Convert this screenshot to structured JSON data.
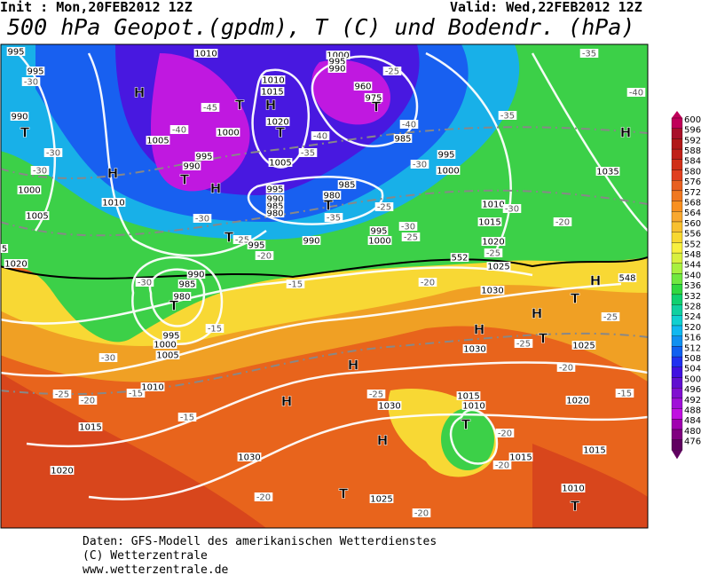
{
  "header": {
    "init": "Init : Mon,20FEB2012 12Z",
    "valid": "Valid: Wed,22FEB2012 12Z",
    "title": "500 hPa Geopot.(gpdm), T (C) und Bodendr. (hPa)"
  },
  "footer": [
    "Daten: GFS-Modell des amerikanischen Wetterdienstes",
    "(C) Wetterzentrale",
    "www.wetterzentrale.de"
  ],
  "legend": {
    "levels": [
      600,
      596,
      592,
      588,
      584,
      580,
      576,
      572,
      568,
      564,
      560,
      556,
      552,
      548,
      544,
      540,
      536,
      532,
      528,
      524,
      520,
      516,
      512,
      508,
      504,
      500,
      496,
      492,
      488,
      484,
      480,
      476
    ],
    "colors": [
      "#c0005a",
      "#a8102a",
      "#b01818",
      "#c02018",
      "#d03018",
      "#e04020",
      "#e86020",
      "#f07820",
      "#f89020",
      "#f8a830",
      "#f8c030",
      "#f8d830",
      "#f8f040",
      "#d8f040",
      "#a8f040",
      "#70e840",
      "#30d840",
      "#10d070",
      "#10d0a0",
      "#10d0d0",
      "#10b8f0",
      "#1090f0",
      "#1060f0",
      "#2030f0",
      "#4010e0",
      "#6010d0",
      "#8010d0",
      "#a010d8",
      "#c010e0",
      "#a000b0",
      "#800080",
      "#600060"
    ]
  },
  "map": {
    "labels": [
      "995",
      "1010",
      "995",
      "-30",
      "H",
      "990",
      "T",
      "-30",
      "-30",
      "H",
      "1000",
      "1010",
      "1005",
      "1005",
      "-40",
      "-45",
      "T",
      "1010",
      "1015",
      "H",
      "1020",
      "T",
      "1000",
      "995",
      "990",
      "T",
      "H",
      "1005",
      "-35",
      "-40",
      "995",
      "990",
      "985",
      "980",
      "985",
      "980",
      "T",
      "-35",
      "-30",
      "T",
      "-25",
      "995",
      "990",
      "-20",
      "1000",
      "995",
      "990",
      "960",
      "975",
      "T",
      "-40",
      "985",
      "-30",
      "995",
      "1000",
      "-25",
      "-35",
      "-40",
      "-35",
      "H",
      "1035",
      "1010",
      "-30",
      "1015",
      "-20",
      "995",
      "1000",
      "-25",
      "-30",
      "-25",
      "1020",
      "-25",
      "1025",
      "552",
      "H",
      "548",
      "T",
      "H",
      "-25",
      "T",
      "1025",
      "-20",
      "1030",
      "-20",
      "-25",
      "H",
      "1030",
      "H",
      "-25",
      "1030",
      "H",
      "1015",
      "1010",
      "T",
      "H",
      "-20",
      "-20",
      "1015",
      "1020",
      "-15",
      "1015",
      "1010",
      "T",
      "T",
      "1025",
      "-20",
      "-20",
      "1030",
      "-15",
      "1020",
      "1015",
      "-20",
      "-25",
      "-15",
      "1010",
      "T",
      "990",
      "985",
      "980",
      "995",
      "1000",
      "1005",
      "-15",
      "-15",
      "-30",
      "-30",
      "1020",
      "5"
    ]
  }
}
